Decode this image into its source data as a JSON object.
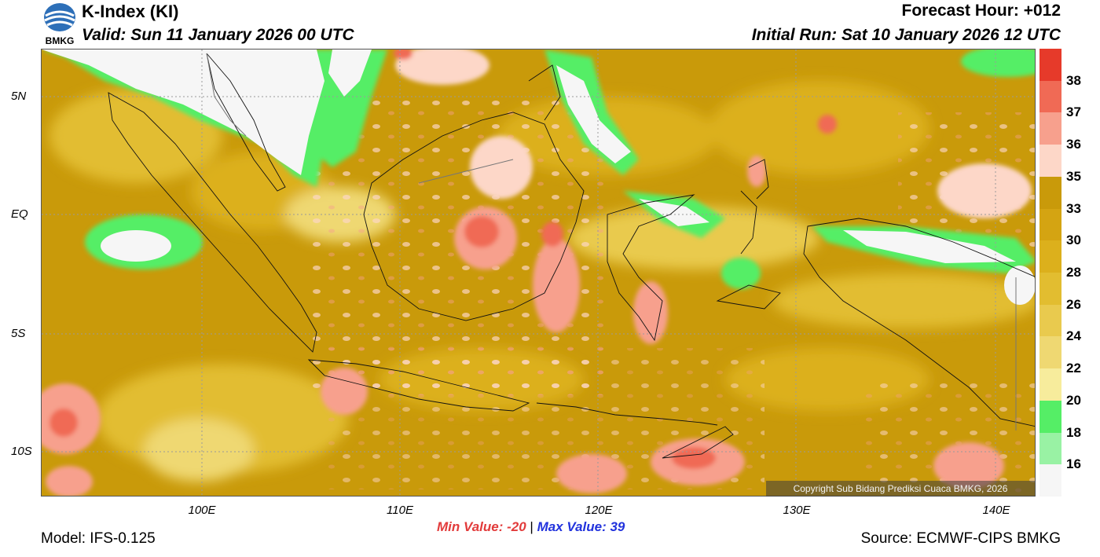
{
  "header": {
    "logo_text": "BMKG",
    "title": "K-Index (KI)",
    "valid": "Valid: Sun 11 January 2026 00 UTC",
    "forecast_hour": "Forecast Hour: +012",
    "initial_run": "Initial Run: Sat 10 January 2026 12 UTC"
  },
  "map": {
    "lat_labels": [
      "5N",
      "EQ",
      "5S",
      "10S"
    ],
    "lon_labels": [
      "100E",
      "110E",
      "120E",
      "130E",
      "140E"
    ],
    "copyright": "Copyright Sub Bidang Prediksi Cuaca BMKG, 2026"
  },
  "colorbar": {
    "labels": [
      "38",
      "37",
      "36",
      "35",
      "33",
      "30",
      "28",
      "26",
      "24",
      "22",
      "20",
      "18",
      "16"
    ],
    "colors": [
      "#e63a2a",
      "#f06a55",
      "#f7a08d",
      "#fdd7c8",
      "#c99a0a",
      "#d4a412",
      "#dcb01c",
      "#e2bd30",
      "#e9ca4e",
      "#efd872",
      "#f7ec9c",
      "#55ee66",
      "#99f2a4",
      "#f6f6f6"
    ]
  },
  "stats": {
    "min": "Min Value: -20",
    "separator": "|",
    "max": "Max Value:  39"
  },
  "footer": {
    "model": "Model: IFS-0.125",
    "source": "Source: ECMWF-CIPS BMKG"
  }
}
